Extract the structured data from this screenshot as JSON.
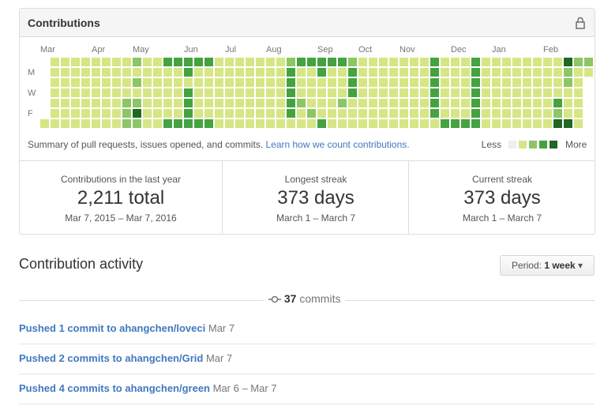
{
  "header": {
    "title": "Contributions"
  },
  "heatmap": {
    "months": [
      "Mar",
      "Apr",
      "May",
      "Jun",
      "Jul",
      "Aug",
      "Sep",
      "Oct",
      "Nov",
      "Dec",
      "Jan",
      "Feb"
    ],
    "weekdays": [
      "M",
      "W",
      "F"
    ],
    "level_colors": [
      "#eeeeee",
      "#d6e685",
      "#8cc665",
      "#44a340",
      "#1e6823"
    ],
    "weeks": [
      [
        null,
        null,
        null,
        null,
        null,
        null,
        1
      ],
      [
        1,
        1,
        1,
        1,
        1,
        1,
        1
      ],
      [
        1,
        1,
        1,
        1,
        1,
        1,
        1
      ],
      [
        1,
        1,
        1,
        1,
        1,
        1,
        1
      ],
      [
        1,
        1,
        1,
        1,
        1,
        1,
        1
      ],
      [
        1,
        1,
        1,
        1,
        1,
        1,
        1
      ],
      [
        1,
        1,
        1,
        1,
        1,
        1,
        1
      ],
      [
        1,
        1,
        1,
        1,
        1,
        1,
        1
      ],
      [
        1,
        1,
        1,
        1,
        2,
        2,
        2
      ],
      [
        2,
        1,
        2,
        1,
        2,
        4,
        2
      ],
      [
        1,
        1,
        1,
        1,
        1,
        1,
        1
      ],
      [
        1,
        1,
        1,
        1,
        1,
        1,
        1
      ],
      [
        3,
        1,
        1,
        1,
        1,
        1,
        3
      ],
      [
        3,
        1,
        1,
        1,
        1,
        1,
        3
      ],
      [
        3,
        3,
        1,
        3,
        3,
        3,
        3
      ],
      [
        3,
        1,
        1,
        1,
        1,
        1,
        3
      ],
      [
        3,
        1,
        1,
        1,
        1,
        1,
        3
      ],
      [
        1,
        1,
        1,
        1,
        1,
        1,
        1
      ],
      [
        1,
        1,
        1,
        1,
        1,
        1,
        1
      ],
      [
        1,
        1,
        1,
        1,
        1,
        1,
        1
      ],
      [
        1,
        1,
        1,
        1,
        1,
        1,
        1
      ],
      [
        1,
        1,
        1,
        1,
        1,
        1,
        1
      ],
      [
        1,
        1,
        1,
        1,
        1,
        1,
        1
      ],
      [
        1,
        1,
        1,
        1,
        1,
        1,
        1
      ],
      [
        2,
        3,
        3,
        3,
        3,
        3,
        1
      ],
      [
        3,
        1,
        1,
        1,
        2,
        1,
        1
      ],
      [
        3,
        1,
        1,
        1,
        1,
        2,
        1
      ],
      [
        3,
        3,
        1,
        1,
        1,
        1,
        3
      ],
      [
        3,
        1,
        1,
        1,
        1,
        1,
        1
      ],
      [
        3,
        1,
        1,
        1,
        2,
        1,
        1
      ],
      [
        2,
        3,
        3,
        3,
        1,
        1,
        1
      ],
      [
        1,
        1,
        1,
        1,
        1,
        1,
        1
      ],
      [
        1,
        1,
        1,
        1,
        1,
        1,
        1
      ],
      [
        1,
        1,
        1,
        1,
        1,
        1,
        1
      ],
      [
        1,
        1,
        1,
        1,
        1,
        1,
        1
      ],
      [
        1,
        1,
        1,
        1,
        1,
        1,
        1
      ],
      [
        1,
        1,
        1,
        1,
        1,
        1,
        1
      ],
      [
        1,
        1,
        1,
        1,
        1,
        1,
        1
      ],
      [
        3,
        3,
        3,
        3,
        3,
        3,
        1
      ],
      [
        1,
        1,
        1,
        1,
        1,
        1,
        3
      ],
      [
        1,
        1,
        1,
        1,
        1,
        1,
        3
      ],
      [
        1,
        1,
        1,
        1,
        1,
        1,
        3
      ],
      [
        3,
        3,
        3,
        3,
        3,
        3,
        3
      ],
      [
        1,
        1,
        1,
        1,
        1,
        1,
        1
      ],
      [
        1,
        1,
        1,
        1,
        1,
        1,
        1
      ],
      [
        1,
        1,
        1,
        1,
        1,
        1,
        1
      ],
      [
        1,
        1,
        1,
        1,
        1,
        1,
        1
      ],
      [
        1,
        1,
        1,
        1,
        1,
        1,
        1
      ],
      [
        1,
        1,
        1,
        1,
        1,
        1,
        1
      ],
      [
        1,
        1,
        1,
        1,
        1,
        1,
        1
      ],
      [
        1,
        1,
        1,
        1,
        3,
        2,
        4
      ],
      [
        4,
        2,
        2,
        1,
        1,
        1,
        4
      ],
      [
        2,
        1,
        1,
        1,
        1,
        1,
        1
      ],
      [
        2,
        1,
        null,
        null,
        null,
        null,
        null
      ]
    ]
  },
  "summary": {
    "text": "Summary of pull requests, issues opened, and commits.",
    "link": "Learn how we count contributions.",
    "less": "Less",
    "more": "More"
  },
  "stats": [
    {
      "label": "Contributions in the last year",
      "value": "2,211 total",
      "range": "Mar 7, 2015 – Mar 7, 2016"
    },
    {
      "label": "Longest streak",
      "value": "373 days",
      "range": "March 1 – March 7"
    },
    {
      "label": "Current streak",
      "value": "373 days",
      "range": "March 1 – March 7"
    }
  ],
  "activity": {
    "title": "Contribution activity",
    "period_label": "Period:",
    "period_value": "1 week",
    "commit_count": 37,
    "commit_unit": "commits",
    "items": [
      {
        "action": "Pushed 1 commit to ahangchen/loveci",
        "date": "Mar 7"
      },
      {
        "action": "Pushed 2 commits to ahangchen/Grid",
        "date": "Mar 7"
      },
      {
        "action": "Pushed 4 commits to ahangchen/green",
        "date": "Mar 6 – Mar 7"
      }
    ]
  }
}
